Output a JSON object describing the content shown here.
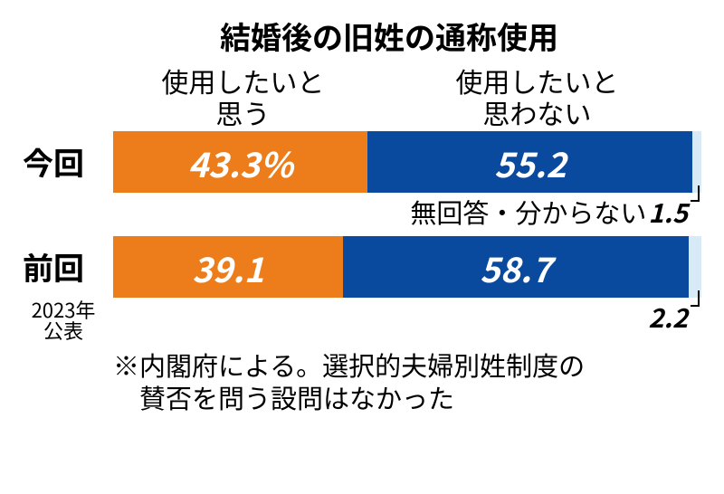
{
  "chart": {
    "title": "結婚後の旧姓の通称使用",
    "legend": {
      "want": "使用したいと\n思う",
      "dont_want": "使用したいと\n思わない"
    },
    "rows": [
      {
        "label": "今回",
        "sublabel": "",
        "segments": [
          {
            "value": 43.3,
            "display": "43.3%",
            "color": "#ed7d1a"
          },
          {
            "value": 55.2,
            "display": "55.2",
            "color": "#0a4a9e"
          },
          {
            "value": 1.5,
            "display": "",
            "color": "#d9eaf7"
          }
        ],
        "footnote_label": "無回答・分からない",
        "footnote_value": "1.5"
      },
      {
        "label": "前回",
        "sublabel": "2023年\n公表",
        "segments": [
          {
            "value": 39.1,
            "display": "39.1",
            "color": "#ed7d1a"
          },
          {
            "value": 58.7,
            "display": "58.7",
            "color": "#0a4a9e"
          },
          {
            "value": 2.2,
            "display": "",
            "color": "#d9eaf7"
          }
        ],
        "footnote_label": "",
        "footnote_value": "2.2"
      }
    ],
    "note": "※内閣府による。選択的夫婦別姓制度の\n　賛否を問う設問はなかった",
    "total": 100,
    "bar_colors": {
      "want": "#ed7d1a",
      "dont_want": "#0a4a9e",
      "na": "#d9eaf7"
    },
    "value_font": {
      "size": 38,
      "style": "italic",
      "weight": "bold",
      "color": "#ffffff"
    },
    "title_font": {
      "size": 34,
      "weight": "bold",
      "color": "#000000"
    }
  }
}
